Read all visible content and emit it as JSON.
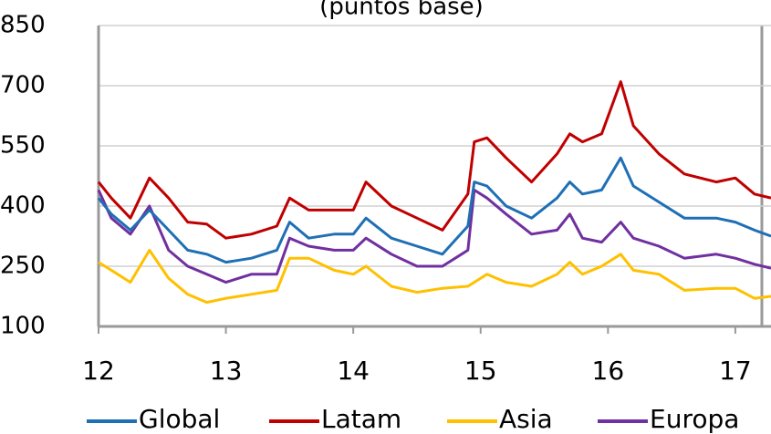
{
  "chart_data": {
    "type": "line",
    "title": "(puntos base)",
    "x": [
      12.0,
      12.1,
      12.25,
      12.4,
      12.55,
      12.7,
      12.85,
      13.0,
      13.2,
      13.4,
      13.5,
      13.65,
      13.85,
      14.0,
      14.1,
      14.3,
      14.5,
      14.7,
      14.9,
      14.95,
      15.05,
      15.2,
      15.4,
      15.6,
      15.7,
      15.8,
      15.95,
      16.1,
      16.2,
      16.4,
      16.6,
      16.85,
      17.0,
      17.15,
      17.28
    ],
    "series": [
      {
        "name": "Global",
        "color": "#1f6fb5",
        "values": [
          420,
          380,
          340,
          390,
          340,
          290,
          280,
          260,
          270,
          290,
          360,
          320,
          330,
          330,
          370,
          320,
          300,
          280,
          350,
          460,
          450,
          400,
          370,
          420,
          460,
          430,
          440,
          520,
          450,
          410,
          370,
          370,
          360,
          340,
          325
        ]
      },
      {
        "name": "Latam",
        "color": "#c00000",
        "values": [
          460,
          420,
          370,
          470,
          420,
          360,
          355,
          320,
          330,
          350,
          420,
          390,
          390,
          390,
          460,
          400,
          370,
          340,
          430,
          560,
          570,
          520,
          460,
          530,
          580,
          560,
          580,
          710,
          600,
          530,
          480,
          460,
          470,
          430,
          420
        ]
      },
      {
        "name": "Asia",
        "color": "#ffc000",
        "values": [
          260,
          240,
          210,
          290,
          220,
          180,
          160,
          170,
          180,
          190,
          270,
          270,
          240,
          230,
          250,
          200,
          185,
          195,
          200,
          210,
          230,
          210,
          200,
          230,
          260,
          230,
          250,
          280,
          240,
          230,
          190,
          195,
          195,
          170,
          175
        ]
      },
      {
        "name": "Europa",
        "color": "#7030a0",
        "values": [
          440,
          370,
          330,
          400,
          290,
          250,
          230,
          210,
          230,
          230,
          320,
          300,
          290,
          290,
          320,
          280,
          250,
          250,
          290,
          440,
          420,
          380,
          330,
          340,
          380,
          320,
          310,
          360,
          320,
          300,
          270,
          280,
          270,
          255,
          245
        ]
      }
    ],
    "xlim": [
      12,
      17.28
    ],
    "xticks": [
      12,
      13,
      14,
      15,
      16,
      17
    ],
    "ylim": [
      100,
      850
    ],
    "yticks": [
      100,
      250,
      400,
      550,
      700,
      850
    ],
    "grid": true,
    "legend": "bottom"
  }
}
